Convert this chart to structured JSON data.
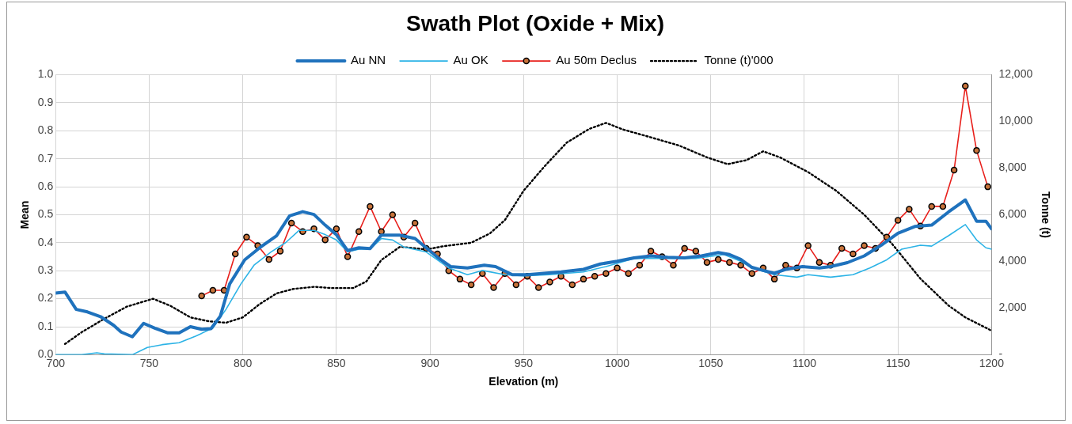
{
  "chart_data": {
    "type": "line",
    "title": "Swath Plot (Oxide + Mix)",
    "xlabel": "Elevation (m)",
    "ylabel": "Mean",
    "y2label": "Tonne (t)",
    "xlim": [
      700,
      1200
    ],
    "xticks": [
      700,
      750,
      800,
      850,
      900,
      950,
      1000,
      1050,
      1100,
      1150,
      1200
    ],
    "ylim": [
      0,
      1
    ],
    "yticks": [
      {
        "value": 0,
        "label": "0.0"
      },
      0.1,
      0.2,
      0.3,
      0.4,
      0.5,
      0.6,
      0.7,
      0.8,
      0.9,
      {
        "value": 1,
        "label": "1.0"
      }
    ],
    "y2lim": [
      0,
      12000
    ],
    "y2ticks": [
      {
        "value": 0,
        "label": "-"
      },
      {
        "value": 2000,
        "label": "2,000"
      },
      {
        "value": 4000,
        "label": "4,000"
      },
      {
        "value": 6000,
        "label": "6,000"
      },
      {
        "value": 8000,
        "label": "8,000"
      },
      {
        "value": 10000,
        "label": "10,000"
      },
      {
        "value": 12000,
        "label": "12,000"
      }
    ],
    "grid": true,
    "legend": "top",
    "series": [
      {
        "name": "Au NN",
        "color": "#1f72bd",
        "marker": "none",
        "line_style": "solid",
        "x": [
          700,
          705,
          711,
          717,
          724,
          731,
          735,
          741,
          747,
          753,
          760,
          766,
          772,
          778,
          783,
          788,
          793,
          801,
          809,
          818,
          825,
          832,
          838,
          844,
          850,
          856,
          862,
          868,
          874,
          884,
          892,
          898,
          904,
          911,
          920,
          929,
          935,
          944,
          952,
          961,
          970,
          982,
          991,
          1000,
          1009,
          1018,
          1027,
          1036,
          1045,
          1054,
          1060,
          1066,
          1072,
          1078,
          1084,
          1090,
          1099,
          1108,
          1114,
          1123,
          1132,
          1141,
          1150,
          1159,
          1168,
          1177,
          1186,
          1192,
          1197,
          1200
        ],
        "values": [
          0.22,
          0.224,
          0.162,
          0.153,
          0.136,
          0.105,
          0.081,
          0.064,
          0.112,
          0.095,
          0.078,
          0.078,
          0.1,
          0.091,
          0.093,
          0.138,
          0.253,
          0.339,
          0.382,
          0.425,
          0.496,
          0.511,
          0.501,
          0.463,
          0.429,
          0.372,
          0.382,
          0.379,
          0.427,
          0.427,
          0.415,
          0.382,
          0.348,
          0.315,
          0.31,
          0.32,
          0.315,
          0.286,
          0.286,
          0.291,
          0.296,
          0.305,
          0.324,
          0.334,
          0.346,
          0.353,
          0.348,
          0.346,
          0.353,
          0.365,
          0.358,
          0.341,
          0.312,
          0.301,
          0.291,
          0.305,
          0.315,
          0.31,
          0.315,
          0.329,
          0.353,
          0.391,
          0.434,
          0.458,
          0.463,
          0.51,
          0.553,
          0.477,
          0.477,
          0.45
        ]
      },
      {
        "name": "Au OK",
        "color": "#2cb3e6",
        "marker": "none",
        "line_style": "solid",
        "x": [
          700,
          714,
          722,
          726,
          741,
          749,
          757,
          766,
          775,
          784,
          791,
          799,
          806,
          815,
          823,
          830,
          838,
          844,
          850,
          856,
          862,
          868,
          874,
          880,
          886,
          898,
          910,
          920,
          928,
          940,
          950,
          964,
          982,
          994,
          1009,
          1027,
          1042,
          1057,
          1066,
          1072,
          1084,
          1096,
          1102,
          1114,
          1126,
          1135,
          1144,
          1152,
          1162,
          1168,
          1177,
          1186,
          1192,
          1197,
          1200
        ],
        "values": [
          0,
          0,
          0.007,
          0.003,
          0,
          0.026,
          0.036,
          0.043,
          0.067,
          0.095,
          0.162,
          0.253,
          0.32,
          0.367,
          0.401,
          0.444,
          0.444,
          0.429,
          0.41,
          0.367,
          0.377,
          0.377,
          0.415,
          0.41,
          0.385,
          0.367,
          0.31,
          0.286,
          0.301,
          0.286,
          0.282,
          0.286,
          0.296,
          0.315,
          0.344,
          0.344,
          0.344,
          0.358,
          0.334,
          0.31,
          0.286,
          0.277,
          0.286,
          0.277,
          0.286,
          0.31,
          0.339,
          0.377,
          0.391,
          0.388,
          0.425,
          0.465,
          0.41,
          0.382,
          0.377
        ]
      },
      {
        "name": "Au 50m Declus",
        "color": "#e8201c",
        "marker": "circle",
        "line_style": "solid",
        "x": [
          778,
          784,
          790,
          796,
          802,
          808,
          814,
          820,
          826,
          832,
          838,
          844,
          850,
          856,
          862,
          868,
          874,
          880,
          886,
          892,
          898,
          904,
          910,
          916,
          922,
          928,
          934,
          940,
          946,
          952,
          958,
          964,
          970,
          976,
          982,
          988,
          994,
          1000,
          1006,
          1012,
          1018,
          1024,
          1030,
          1036,
          1042,
          1048,
          1054,
          1060,
          1066,
          1072,
          1078,
          1084,
          1090,
          1096,
          1102,
          1108,
          1114,
          1120,
          1126,
          1132,
          1138,
          1144,
          1150,
          1156,
          1162,
          1168,
          1174,
          1180,
          1186,
          1192,
          1198
        ],
        "values": [
          0.21,
          0.23,
          0.23,
          0.36,
          0.42,
          0.39,
          0.34,
          0.37,
          0.47,
          0.44,
          0.45,
          0.41,
          0.45,
          0.35,
          0.44,
          0.53,
          0.44,
          0.5,
          0.42,
          0.47,
          0.38,
          0.36,
          0.3,
          0.27,
          0.25,
          0.29,
          0.24,
          0.29,
          0.25,
          0.28,
          0.24,
          0.26,
          0.28,
          0.25,
          0.27,
          0.28,
          0.29,
          0.31,
          0.29,
          0.32,
          0.37,
          0.35,
          0.32,
          0.38,
          0.37,
          0.33,
          0.34,
          0.33,
          0.32,
          0.29,
          0.31,
          0.27,
          0.32,
          0.31,
          0.39,
          0.33,
          0.32,
          0.38,
          0.36,
          0.39,
          0.38,
          0.42,
          0.48,
          0.52,
          0.46,
          0.53,
          0.53,
          0.66,
          0.96,
          0.73,
          0.6
        ]
      },
      {
        "name": "Tonne (t)'000",
        "color": "#000000",
        "marker": "none",
        "line_style": "dotted",
        "axis": "y2",
        "x": [
          705,
          714,
          726,
          738,
          752,
          761,
          772,
          782,
          791,
          800,
          809,
          818,
          827,
          838,
          847,
          859,
          866,
          874,
          884,
          898,
          907,
          922,
          932,
          940,
          950,
          961,
          973,
          985,
          994,
          1003,
          1018,
          1033,
          1048,
          1059,
          1066,
          1069,
          1078,
          1087,
          1102,
          1117,
          1132,
          1147,
          1162,
          1177,
          1186,
          1200
        ],
        "values": [
          460,
          970,
          1540,
          2060,
          2400,
          2110,
          1600,
          1430,
          1370,
          1600,
          2170,
          2630,
          2820,
          2910,
          2860,
          2860,
          3140,
          4060,
          4630,
          4510,
          4650,
          4800,
          5200,
          5770,
          7030,
          8060,
          9090,
          9680,
          9940,
          9660,
          9320,
          8970,
          8460,
          8170,
          8290,
          8340,
          8720,
          8460,
          7830,
          7030,
          6000,
          4740,
          3260,
          2110,
          1600,
          1030
        ]
      }
    ]
  }
}
